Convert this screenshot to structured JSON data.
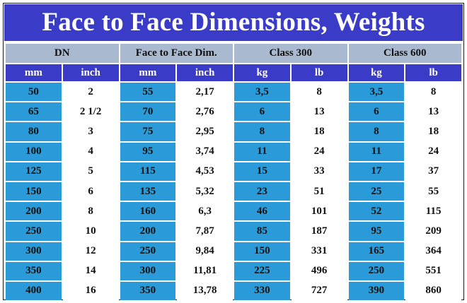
{
  "title": "Face to Face Dimensions, Weights",
  "groups": [
    "DN",
    "Face to Face Dim.",
    "Class 300",
    "Class 600"
  ],
  "units": [
    "mm",
    "inch",
    "mm",
    "inch",
    "kg",
    "lb",
    "kg",
    "lb"
  ],
  "rows": [
    [
      "50",
      "2",
      "55",
      "2,17",
      "3,5",
      "8",
      "3,5",
      "8"
    ],
    [
      "65",
      "2 1/2",
      "70",
      "2,76",
      "6",
      "13",
      "6",
      "13"
    ],
    [
      "80",
      "3",
      "75",
      "2,95",
      "8",
      "18",
      "8",
      "18"
    ],
    [
      "100",
      "4",
      "95",
      "3,74",
      "11",
      "24",
      "11",
      "24"
    ],
    [
      "125",
      "5",
      "115",
      "4,53",
      "15",
      "33",
      "17",
      "37"
    ],
    [
      "150",
      "6",
      "135",
      "5,32",
      "23",
      "51",
      "25",
      "55"
    ],
    [
      "200",
      "8",
      "160",
      "6,3",
      "46",
      "101",
      "52",
      "115"
    ],
    [
      "250",
      "10",
      "200",
      "7,87",
      "85",
      "187",
      "95",
      "209"
    ],
    [
      "300",
      "12",
      "250",
      "9,84",
      "150",
      "331",
      "165",
      "364"
    ],
    [
      "350",
      "14",
      "300",
      "11,81",
      "225",
      "496",
      "250",
      "551"
    ],
    [
      "400",
      "16",
      "350",
      "13,78",
      "330",
      "727",
      "390",
      "860"
    ]
  ],
  "colors": {
    "title_bg": "#3a3cc8",
    "group_header_bg": "#a9b9d0",
    "unit_header_bg": "#3a3cc8",
    "metric_cell_bg": "#2a9bd8",
    "imperial_cell_bg": "#ffffff"
  }
}
